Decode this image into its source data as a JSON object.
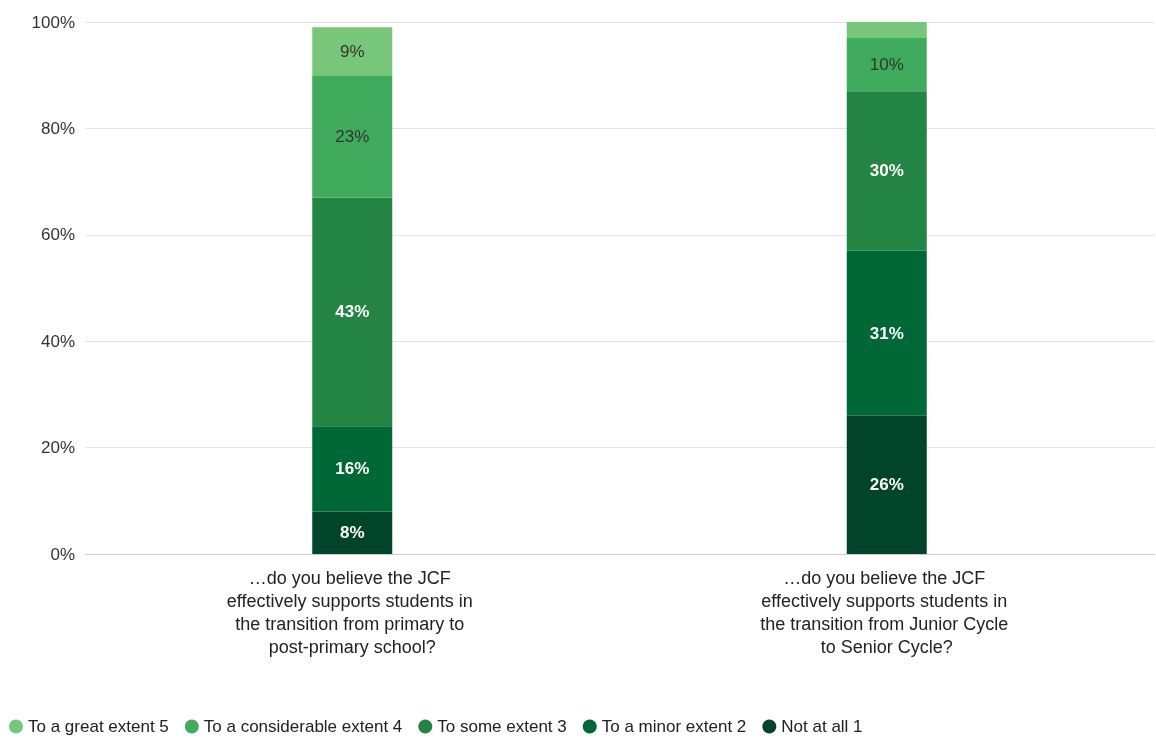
{
  "chart_data": {
    "type": "bar",
    "stacked": true,
    "categories": [
      "…do you believe the JCF effectively supports students in the transition from primary to post-primary school?",
      "…do you believe the JCF effectively supports students in the transition from Junior Cycle to Senior Cycle?"
    ],
    "series": [
      {
        "name": "Not at all 1",
        "color": "#004529",
        "values": [
          8,
          26
        ],
        "value_labels": [
          "8%",
          "26%"
        ]
      },
      {
        "name": "To a minor extent 2",
        "color": "#006837",
        "values": [
          16,
          31
        ],
        "value_labels": [
          "16%",
          "31%"
        ]
      },
      {
        "name": "To some extent 3",
        "color": "#238443",
        "values": [
          43,
          30
        ],
        "value_labels": [
          "43%",
          "30%"
        ]
      },
      {
        "name": "To a considerable extent 4",
        "color": "#41ab5d",
        "values": [
          23,
          10
        ],
        "value_labels": [
          "23%",
          "10%"
        ]
      },
      {
        "name": "To a great extent 5",
        "color": "#78c679",
        "values": [
          9,
          3
        ],
        "value_labels": [
          "9%",
          null
        ]
      }
    ],
    "ylim": [
      0,
      100
    ],
    "yticks": [
      {
        "value": 0,
        "label": "0%"
      },
      {
        "value": 20,
        "label": "20%"
      },
      {
        "value": 40,
        "label": "40%"
      },
      {
        "value": 60,
        "label": "60%"
      },
      {
        "value": 80,
        "label": "80%"
      },
      {
        "value": 100,
        "label": "100%"
      }
    ],
    "grid": "y",
    "legend": "bottom"
  }
}
